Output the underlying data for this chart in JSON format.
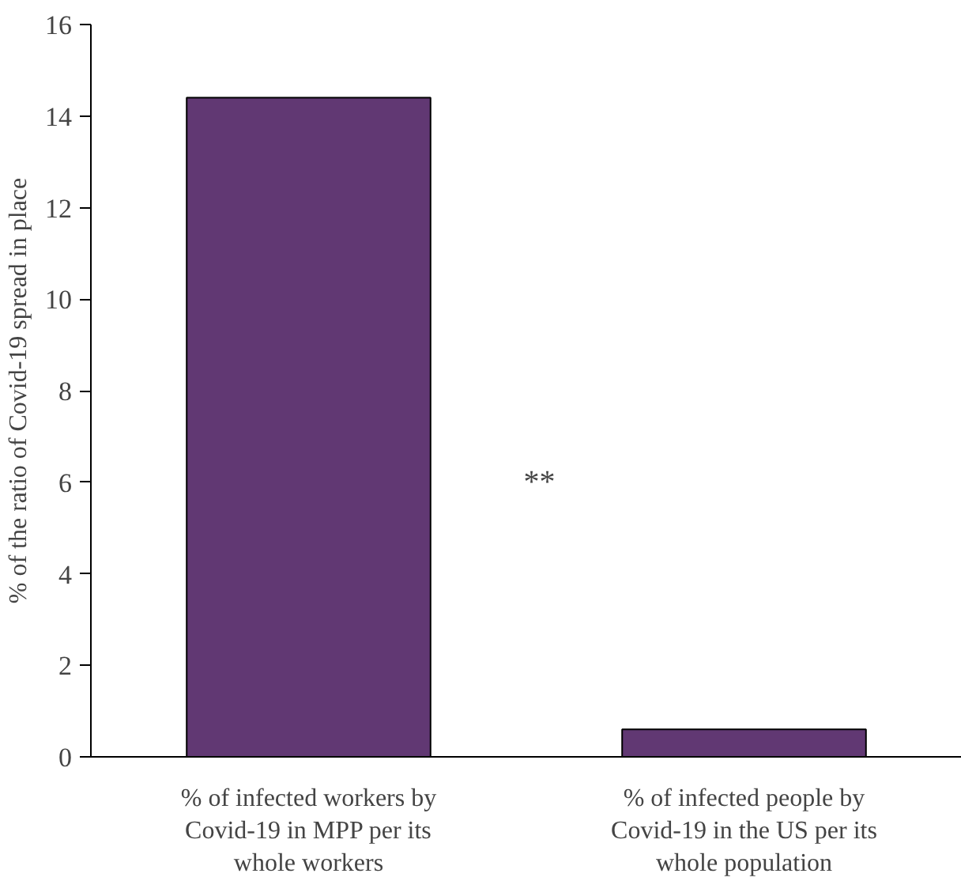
{
  "chart_data": {
    "type": "bar",
    "ylabel": "% of the ratio of Covid-19 spread in place",
    "categories": [
      "% of infected workers by Covid-19 in MPP per its whole workers",
      "% of infected people by Covid-19 in the US per its whole population"
    ],
    "values": [
      14.4,
      0.6
    ],
    "color": "#613873",
    "ylim": [
      0,
      16
    ],
    "yticks": [
      0,
      2,
      4,
      6,
      8,
      10,
      12,
      14,
      16
    ],
    "annotations": [
      "**"
    ],
    "grid": false
  }
}
